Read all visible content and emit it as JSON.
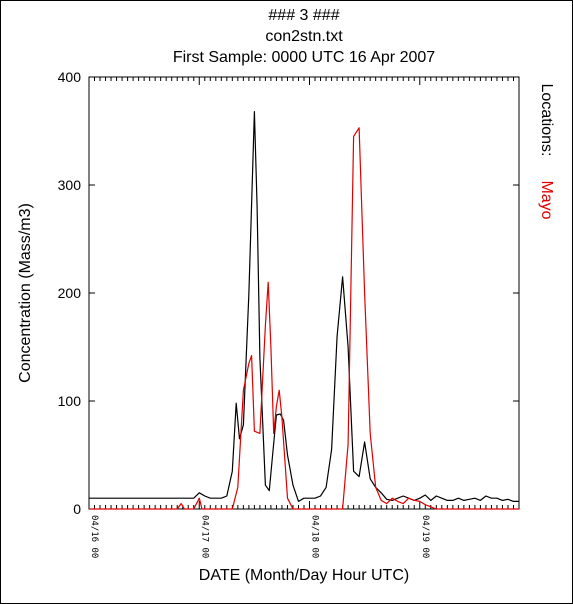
{
  "chart_data": {
    "type": "line",
    "title_lines": [
      "### 3 ###",
      "con2stn.txt",
      "First Sample: 0000 UTC 16 Apr 2007"
    ],
    "xlabel": "DATE (Month/Day Hour UTC)",
    "ylabel": "Concentration (Mass/m3)",
    "right_label": "Locations:",
    "ylim": [
      0,
      400
    ],
    "yticks": [
      0,
      100,
      200,
      300,
      400
    ],
    "x_unit": "hours since 04/16 00",
    "xlim": [
      0,
      78
    ],
    "xticks": [
      {
        "x": 0,
        "label": "04/16 00"
      },
      {
        "x": 20,
        "label": "04/17 00"
      },
      {
        "x": 40,
        "label": "04/18 00"
      },
      {
        "x": 60,
        "label": "04/19 00"
      }
    ],
    "grid": false,
    "series": [
      {
        "name": "",
        "color": "#000000",
        "points": [
          [
            0,
            10
          ],
          [
            16,
            10
          ],
          [
            19,
            10
          ],
          [
            20,
            15
          ],
          [
            21,
            12
          ],
          [
            22,
            10
          ],
          [
            24,
            10
          ],
          [
            25,
            12
          ],
          [
            26,
            35
          ],
          [
            26.7,
            98
          ],
          [
            27.3,
            65
          ],
          [
            28,
            78
          ],
          [
            29,
            200
          ],
          [
            30,
            368
          ],
          [
            30.5,
            280
          ],
          [
            31,
            140
          ],
          [
            32,
            22
          ],
          [
            32.7,
            17
          ],
          [
            33.3,
            50
          ],
          [
            34,
            87
          ],
          [
            34.7,
            88
          ],
          [
            35.3,
            82
          ],
          [
            36,
            50
          ],
          [
            37,
            22
          ],
          [
            38,
            7
          ],
          [
            39,
            10
          ],
          [
            41,
            10
          ],
          [
            42,
            12
          ],
          [
            43,
            20
          ],
          [
            44,
            55
          ],
          [
            45,
            160
          ],
          [
            46,
            215
          ],
          [
            47,
            150
          ],
          [
            48,
            35
          ],
          [
            49,
            30
          ],
          [
            50,
            62
          ],
          [
            51,
            28
          ],
          [
            52,
            20
          ],
          [
            53,
            15
          ],
          [
            54,
            9
          ],
          [
            55,
            8
          ],
          [
            56,
            10
          ],
          [
            57,
            12
          ],
          [
            58,
            10
          ],
          [
            59,
            8
          ],
          [
            60,
            10
          ],
          [
            61,
            13
          ],
          [
            62,
            8
          ],
          [
            63,
            12
          ],
          [
            64,
            10
          ],
          [
            65,
            8
          ],
          [
            66,
            8
          ],
          [
            67,
            10
          ],
          [
            68,
            8
          ],
          [
            69,
            9
          ],
          [
            70,
            10
          ],
          [
            71,
            8
          ],
          [
            72,
            12
          ],
          [
            73,
            10
          ],
          [
            74,
            10
          ],
          [
            75,
            8
          ],
          [
            76,
            9
          ],
          [
            77,
            7
          ],
          [
            78,
            7
          ]
        ]
      },
      {
        "name": "Mayo",
        "color": "#e00000",
        "points": [
          [
            0,
            0
          ],
          [
            16,
            0
          ],
          [
            16.7,
            5
          ],
          [
            17.3,
            0
          ],
          [
            19,
            0
          ],
          [
            20,
            10
          ],
          [
            20.5,
            0
          ],
          [
            26,
            0
          ],
          [
            27,
            20
          ],
          [
            28,
            110
          ],
          [
            29,
            135
          ],
          [
            29.5,
            142
          ],
          [
            30,
            72
          ],
          [
            31,
            70
          ],
          [
            32,
            170
          ],
          [
            32.5,
            210
          ],
          [
            33,
            150
          ],
          [
            33.5,
            70
          ],
          [
            34,
            95
          ],
          [
            34.5,
            110
          ],
          [
            35,
            85
          ],
          [
            36,
            10
          ],
          [
            37,
            0
          ],
          [
            46,
            0
          ],
          [
            47,
            60
          ],
          [
            48,
            345
          ],
          [
            49,
            353
          ],
          [
            50,
            200
          ],
          [
            51,
            70
          ],
          [
            52,
            20
          ],
          [
            53,
            8
          ],
          [
            54,
            5
          ],
          [
            55,
            10
          ],
          [
            56,
            7
          ],
          [
            57,
            5
          ],
          [
            58,
            10
          ],
          [
            59,
            8
          ],
          [
            60,
            7
          ],
          [
            61,
            4
          ],
          [
            62,
            2
          ],
          [
            63,
            0
          ],
          [
            78,
            0
          ]
        ]
      }
    ]
  }
}
